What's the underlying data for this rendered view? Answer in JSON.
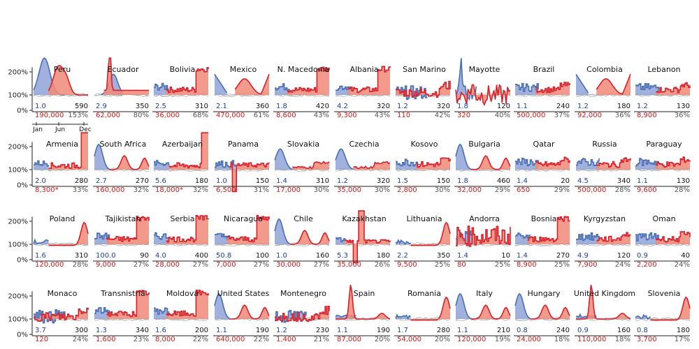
{
  "chart_data": {
    "type": "line",
    "description_hidden": "",
    "y_ticks": [
      "200%",
      "100%",
      "0%"
    ],
    "y_tick_values": [
      200,
      100,
      0
    ],
    "month_labels": [
      "Jan",
      "Jun",
      "Dec"
    ],
    "colors": {
      "blue_fill": "#8fa3d8",
      "blue_line": "#4a6fb5",
      "red_fill": "#f08a78",
      "red_line": "#d8202a",
      "grey_line": "#a0a0a0",
      "blue_text": "#1f3f99",
      "red_text": "#d01a1a",
      "grey_text": "#555555"
    },
    "panels": [
      {
        "country": "Peru",
        "blue_value": "1.0",
        "black_value": "590",
        "red_value": "190,000",
        "pct": "153%",
        "shape": "peru"
      },
      {
        "country": "Ecuador",
        "blue_value": "2.9",
        "black_value": "350",
        "red_value": "62,000",
        "pct": "80%",
        "shape": "ecuador"
      },
      {
        "country": "Bolivia",
        "blue_value": "2.5",
        "black_value": "310",
        "red_value": "36,000",
        "pct": "68%",
        "shape": "stepRed"
      },
      {
        "country": "Mexico",
        "blue_value": "2.1",
        "black_value": "360",
        "red_value": "470,000",
        "pct": "61%",
        "shape": "uBoth"
      },
      {
        "country": "N. Macedonia",
        "blue_value": "1.8",
        "black_value": "420",
        "red_value": "8,600",
        "pct": "43%",
        "shape": "stepRed"
      },
      {
        "country": "Albania",
        "blue_value": "4.2",
        "black_value": "320",
        "red_value": "9,300",
        "pct": "43%",
        "shape": "stepRed"
      },
      {
        "country": "San Marino",
        "blue_value": "1.2",
        "black_value": "320",
        "red_value": "110",
        "pct": "42%",
        "shape": "noisy"
      },
      {
        "country": "Mayotte",
        "blue_value": "1.8",
        "black_value": "120",
        "red_value": "320",
        "pct": "40%",
        "shape": "mayotte"
      },
      {
        "country": "Brazil",
        "blue_value": "1.1",
        "black_value": "240",
        "red_value": "500,000",
        "pct": "37%",
        "shape": "stepMid"
      },
      {
        "country": "Colombia",
        "blue_value": "1.2",
        "black_value": "180",
        "red_value": "92,000",
        "pct": "36%",
        "shape": "uBoth"
      },
      {
        "country": "Lebanon",
        "blue_value": "1.2",
        "black_value": "130",
        "red_value": "8,900",
        "pct": "36%",
        "shape": "stepMid"
      },
      {
        "country": "Armenia",
        "blue_value": "2.0",
        "black_value": "280",
        "red_value": "8,300*",
        "pct": "33%",
        "shape": "stepTall"
      },
      {
        "country": "South Africa",
        "blue_value": "2.7",
        "black_value": "270",
        "red_value": "160,000",
        "pct": "32%",
        "shape": "blueRed"
      },
      {
        "country": "Azerbaijan",
        "blue_value": "5.6",
        "black_value": "180",
        "red_value": "18,000*",
        "pct": "32%",
        "shape": "stepTall"
      },
      {
        "country": "Panama",
        "blue_value": "1.0",
        "black_value": "150",
        "red_value": "6,500",
        "pct": "31%",
        "shape": "panama"
      },
      {
        "country": "Slovakia",
        "blue_value": "1.4",
        "black_value": "310",
        "red_value": "17,000",
        "pct": "30%",
        "shape": "blueFirst"
      },
      {
        "country": "Czechia",
        "blue_value": "1.2",
        "black_value": "320",
        "red_value": "35,000",
        "pct": "30%",
        "shape": "blueFirst"
      },
      {
        "country": "Kosovo",
        "blue_value": "1.5",
        "black_value": "150",
        "red_value": "2,800",
        "pct": "30%",
        "shape": "stepMid"
      },
      {
        "country": "Bulgaria",
        "blue_value": "1.8",
        "black_value": "460",
        "red_value": "32,000",
        "pct": "29%",
        "shape": "blueRed"
      },
      {
        "country": "Qatar",
        "blue_value": "1.4",
        "black_value": "20",
        "red_value": "650",
        "pct": "29%",
        "shape": "stepMid"
      },
      {
        "country": "Russia",
        "blue_value": "4.5",
        "black_value": "340",
        "red_value": "500,000",
        "pct": "28%",
        "shape": "stepMid"
      },
      {
        "country": "Paraguay",
        "blue_value": "1.1",
        "black_value": "130",
        "red_value": "9,600",
        "pct": "28%",
        "shape": "stepMid"
      },
      {
        "country": "Poland",
        "blue_value": "1.6",
        "black_value": "310",
        "red_value": "120,000",
        "pct": "28%",
        "shape": "lateRed"
      },
      {
        "country": "Tajikistan",
        "blue_value": "100.0",
        "black_value": "90",
        "red_value": "9,000",
        "pct": "27%",
        "shape": "stepRed"
      },
      {
        "country": "Serbia",
        "blue_value": "4.0",
        "black_value": "400",
        "red_value": "28,000",
        "pct": "27%",
        "shape": "stepRed"
      },
      {
        "country": "Nicaragua",
        "blue_value": "50.8",
        "black_value": "100",
        "red_value": "7,000",
        "pct": "27%",
        "shape": "stepRed"
      },
      {
        "country": "Chile",
        "blue_value": "1.0",
        "black_value": "160",
        "red_value": "30,000",
        "pct": "27%",
        "shape": "blueRed"
      },
      {
        "country": "Kazakhstan",
        "blue_value": "5.3",
        "black_value": "180",
        "red_value": "35,000",
        "pct": "26%",
        "shape": "kazakh"
      },
      {
        "country": "Lithuania",
        "blue_value": "2.2",
        "black_value": "350",
        "red_value": "9,500",
        "pct": "25%",
        "shape": "lateRed"
      },
      {
        "country": "Andorra",
        "blue_value": "1.4",
        "black_value": "10",
        "red_value": "80",
        "pct": "25%",
        "shape": "andorra"
      },
      {
        "country": "Bosnia",
        "blue_value": "1.4",
        "black_value": "270",
        "red_value": "8,900",
        "pct": "25%",
        "shape": "stepRed"
      },
      {
        "country": "Kyrgyzstan",
        "blue_value": "4.9",
        "black_value": "120",
        "red_value": "7,900",
        "pct": "24%",
        "shape": "stepMid"
      },
      {
        "country": "Oman",
        "blue_value": "0.9",
        "black_value": "40",
        "red_value": "2,200",
        "pct": "24%",
        "shape": "stepMid"
      },
      {
        "country": "Monaco",
        "blue_value": "3.7",
        "black_value": "300",
        "red_value": "120",
        "pct": "24%",
        "shape": "noisy"
      },
      {
        "country": "Transnistria",
        "blue_value": "1.3",
        "black_value": "340",
        "red_value": "1,600",
        "pct": "23%",
        "shape": "stepRed"
      },
      {
        "country": "Moldova",
        "blue_value": "1.6",
        "black_value": "200",
        "red_value": "8,000",
        "pct": "22%",
        "shape": "stepRed"
      },
      {
        "country": "United States",
        "blue_value": "1.1",
        "black_value": "190",
        "red_value": "640,000",
        "pct": "22%",
        "shape": "blueRed"
      },
      {
        "country": "Montenegro",
        "blue_value": "1.2",
        "black_value": "230",
        "red_value": "1,400",
        "pct": "21%",
        "shape": "noisy"
      },
      {
        "country": "Spain",
        "blue_value": "1.1",
        "black_value": "190",
        "red_value": "87,000",
        "pct": "20%",
        "shape": "spain"
      },
      {
        "country": "Romania",
        "blue_value": "1.7",
        "black_value": "280",
        "red_value": "54,000",
        "pct": "20%",
        "shape": "lateRed"
      },
      {
        "country": "Italy",
        "blue_value": "1.1",
        "black_value": "210",
        "red_value": "120,000",
        "pct": "19%",
        "shape": "blueRed"
      },
      {
        "country": "Hungary",
        "blue_value": "0.8",
        "black_value": "240",
        "red_value": "24,000",
        "pct": "18%",
        "shape": "blueRed"
      },
      {
        "country": "United Kingdom",
        "blue_value": "0.9",
        "black_value": "160",
        "red_value": "110,000",
        "pct": "18%",
        "shape": "spain"
      },
      {
        "country": "Slovenia",
        "blue_value": "0.8",
        "black_value": "180",
        "red_value": "3,700",
        "pct": "17%",
        "shape": "lateRed"
      }
    ],
    "row_sizes": [
      11,
      11,
      11,
      11
    ],
    "ylim": [
      0,
      250
    ]
  }
}
